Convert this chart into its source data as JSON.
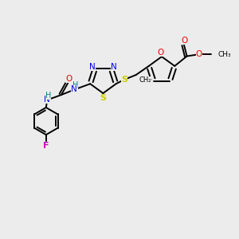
{
  "background_color": "#ececec",
  "atom_colors": {
    "C": "#000000",
    "N": "#0000ee",
    "O": "#ee0000",
    "S": "#cccc00",
    "F": "#cc00cc",
    "H": "#008080"
  },
  "bond_color": "#000000",
  "lw": 1.4
}
